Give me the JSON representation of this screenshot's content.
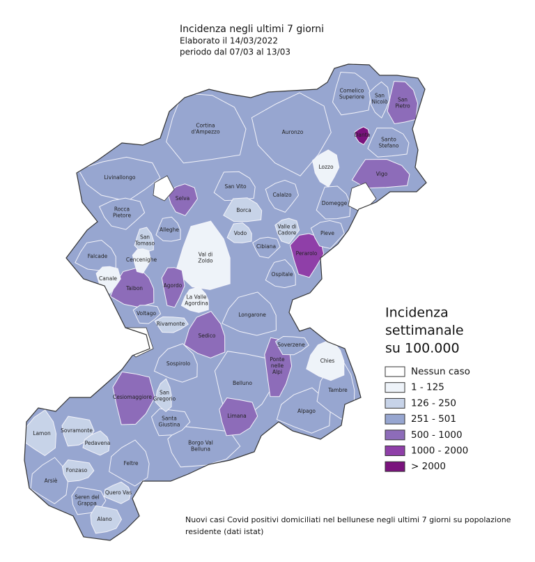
{
  "header": {
    "title": "Incidenza negli ultimi 7 giorni",
    "date": "Elaborato il 14/03/2022",
    "period": "periodo dal 07/03 al 13/03"
  },
  "legend": {
    "title": [
      "Incidenza",
      "settimanale",
      "su 100.000"
    ],
    "items": [
      {
        "label": "Nessun caso",
        "color": "#ffffff"
      },
      {
        "label": "1 - 125",
        "color": "#eef3f9"
      },
      {
        "label": "126 - 250",
        "color": "#c7d3e8"
      },
      {
        "label": "251 - 501",
        "color": "#97a6d0"
      },
      {
        "label": "500 - 1000",
        "color": "#8d6cb9"
      },
      {
        "label": "1000 - 2000",
        "color": "#8f3fa8"
      },
      {
        "label": "> 2000",
        "color": "#7a137d"
      }
    ]
  },
  "municipalities": [
    {
      "name": [
        "Cortina",
        "d'Ampezzo"
      ],
      "color": "#97a6d0"
    },
    {
      "name": [
        "Auronzo"
      ],
      "color": "#97a6d0"
    },
    {
      "name": [
        "Comelico",
        "Superiore"
      ],
      "color": "#97a6d0"
    },
    {
      "name": [
        "San",
        "Nicolò"
      ],
      "color": "#97a6d0"
    },
    {
      "name": [
        "San",
        "Pietro"
      ],
      "color": "#8d6cb9"
    },
    {
      "name": [
        "Danta"
      ],
      "color": "#7a137d"
    },
    {
      "name": [
        "Santo",
        "Stefano"
      ],
      "color": "#97a6d0"
    },
    {
      "name": [
        "Lozzo"
      ],
      "color": "#eef3f9"
    },
    {
      "name": [
        "Vigo"
      ],
      "color": "#8d6cb9"
    },
    {
      "name": [
        "Livinallongo"
      ],
      "color": "#97a6d0"
    },
    {
      "name": [
        "San Vito"
      ],
      "color": "#97a6d0"
    },
    {
      "name": [
        "Calalzo"
      ],
      "color": "#97a6d0"
    },
    {
      "name": [
        "Domegge"
      ],
      "color": "#97a6d0"
    },
    {
      "name": [
        "Selva"
      ],
      "color": "#8d6cb9"
    },
    {
      "name": [
        "Borca"
      ],
      "color": "#c7d3e8"
    },
    {
      "name": [
        "Rocca",
        "Pietore"
      ],
      "color": "#97a6d0"
    },
    {
      "name": [
        "Vodo"
      ],
      "color": "#c7d3e8"
    },
    {
      "name": [
        "Valle di",
        "Cadore"
      ],
      "color": "#c7d3e8"
    },
    {
      "name": [
        "Alleghe"
      ],
      "color": "#97a6d0"
    },
    {
      "name": [
        "Pieve"
      ],
      "color": "#97a6d0"
    },
    {
      "name": [
        "San",
        "Tomaso"
      ],
      "color": "#c7d3e8"
    },
    {
      "name": [
        "Cibiana"
      ],
      "color": "#97a6d0"
    },
    {
      "name": [
        "Val di",
        "Zoldo"
      ],
      "color": "#eef3f9"
    },
    {
      "name": [
        "Perarolo"
      ],
      "color": "#8f3fa8"
    },
    {
      "name": [
        "Falcade"
      ],
      "color": "#97a6d0"
    },
    {
      "name": [
        "Cencenighe"
      ],
      "color": "#eef3f9"
    },
    {
      "name": [
        "Ospitale"
      ],
      "color": "#97a6d0"
    },
    {
      "name": [
        "Canale"
      ],
      "color": "#eef3f9"
    },
    {
      "name": [
        "Taibon"
      ],
      "color": "#8d6cb9"
    },
    {
      "name": [
        "Agordo"
      ],
      "color": "#8d6cb9"
    },
    {
      "name": [
        "La Valle",
        "Agordina"
      ],
      "color": "#eef3f9"
    },
    {
      "name": [
        "Voltago"
      ],
      "color": "#97a6d0"
    },
    {
      "name": [
        "Longarone"
      ],
      "color": "#97a6d0"
    },
    {
      "name": [
        "Rivamonte"
      ],
      "color": "#c7d3e8"
    },
    {
      "name": [
        "Sedico"
      ],
      "color": "#8d6cb9"
    },
    {
      "name": [
        "Soverzene"
      ],
      "color": "#97a6d0"
    },
    {
      "name": [
        "Chies"
      ],
      "color": "#eef3f9"
    },
    {
      "name": [
        "Ponte",
        "nelle",
        "Alpi"
      ],
      "color": "#8d6cb9"
    },
    {
      "name": [
        "Sospirolo"
      ],
      "color": "#97a6d0"
    },
    {
      "name": [
        "Cesiomaggiore"
      ],
      "color": "#8d6cb9"
    },
    {
      "name": [
        "San",
        "Gregorio"
      ],
      "color": "#c7d3e8"
    },
    {
      "name": [
        "Belluno"
      ],
      "color": "#97a6d0"
    },
    {
      "name": [
        "Tambre"
      ],
      "color": "#97a6d0"
    },
    {
      "name": [
        "Santa",
        "Giustina"
      ],
      "color": "#97a6d0"
    },
    {
      "name": [
        "Alpago"
      ],
      "color": "#97a6d0"
    },
    {
      "name": [
        "Limana"
      ],
      "color": "#8d6cb9"
    },
    {
      "name": [
        "Lamon"
      ],
      "color": "#c7d3e8"
    },
    {
      "name": [
        "Sovramonte"
      ],
      "color": "#c7d3e8"
    },
    {
      "name": [
        "Pedavena"
      ],
      "color": "#c7d3e8"
    },
    {
      "name": [
        "Borgo Val",
        "Belluna"
      ],
      "color": "#97a6d0"
    },
    {
      "name": [
        "Feltre"
      ],
      "color": "#97a6d0"
    },
    {
      "name": [
        "Fonzaso"
      ],
      "color": "#c7d3e8"
    },
    {
      "name": [
        "Arsiè"
      ],
      "color": "#97a6d0"
    },
    {
      "name": [
        "Seren del",
        "Grappa"
      ],
      "color": "#97a6d0"
    },
    {
      "name": [
        "Quero Vas"
      ],
      "color": "#c7d3e8"
    },
    {
      "name": [
        "Alano"
      ],
      "color": "#c7d3e8"
    }
  ],
  "footnote": [
    "Nuovi casi Covid positivi domiciliati nel bellunese negli ultimi 7 giorni su popolazione",
    "residente (dati istat)"
  ]
}
